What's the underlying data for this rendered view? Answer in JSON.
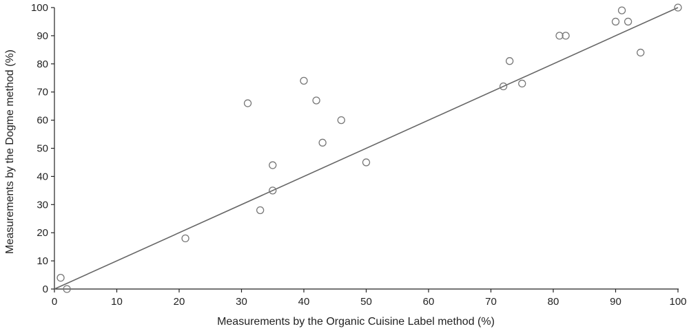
{
  "chart_data": {
    "type": "scatter",
    "title": "",
    "xlabel": "Measurements by the Organic Cuisine Label method (%)",
    "ylabel": "Measurements by the Dogme method (%)",
    "xlim": [
      0,
      100
    ],
    "ylim": [
      0,
      100
    ],
    "xticks": [
      0,
      10,
      20,
      30,
      40,
      50,
      60,
      70,
      80,
      90,
      100
    ],
    "yticks": [
      0,
      10,
      20,
      30,
      40,
      50,
      60,
      70,
      80,
      90,
      100
    ],
    "grid": false,
    "legend": "none",
    "points": [
      {
        "x": 1,
        "y": 4
      },
      {
        "x": 2,
        "y": 0
      },
      {
        "x": 21,
        "y": 18
      },
      {
        "x": 31,
        "y": 66
      },
      {
        "x": 33,
        "y": 28
      },
      {
        "x": 35,
        "y": 44
      },
      {
        "x": 35,
        "y": 35
      },
      {
        "x": 40,
        "y": 74
      },
      {
        "x": 42,
        "y": 67
      },
      {
        "x": 43,
        "y": 52
      },
      {
        "x": 46,
        "y": 60
      },
      {
        "x": 50,
        "y": 45
      },
      {
        "x": 72,
        "y": 72
      },
      {
        "x": 73,
        "y": 81
      },
      {
        "x": 75,
        "y": 73
      },
      {
        "x": 81,
        "y": 90
      },
      {
        "x": 82,
        "y": 90
      },
      {
        "x": 90,
        "y": 95
      },
      {
        "x": 91,
        "y": 99
      },
      {
        "x": 92,
        "y": 95
      },
      {
        "x": 94,
        "y": 84
      },
      {
        "x": 100,
        "y": 100
      }
    ],
    "reference_line": {
      "from": [
        0,
        0
      ],
      "to": [
        100,
        100
      ]
    },
    "colors": {
      "marker": "#777777",
      "line": "#666666",
      "axis": "#222222"
    }
  }
}
